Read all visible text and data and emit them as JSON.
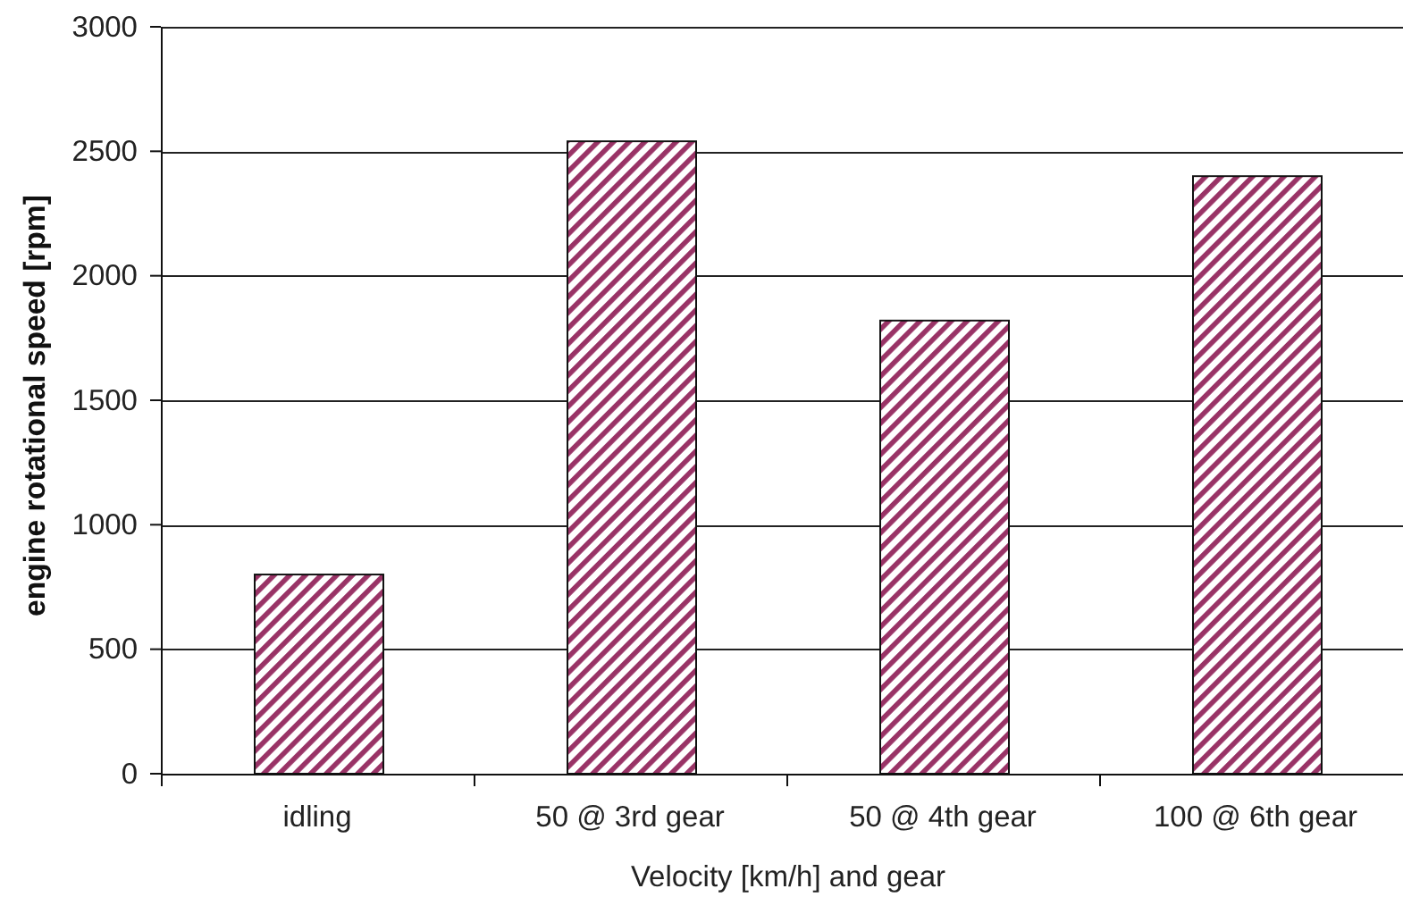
{
  "chart_data": {
    "type": "bar",
    "xlabel": "Velocity [km/h] and gear",
    "ylabel": "engine rotational speed [rpm]",
    "categories": [
      "idling",
      "50 @ 3rd gear",
      "50 @ 4th gear",
      "100 @ 6th gear"
    ],
    "values": [
      800,
      2540,
      1820,
      2400
    ],
    "color": "#993366",
    "ylim": [
      0,
      3000
    ],
    "yticks": [
      0,
      500,
      1000,
      1500,
      2000,
      2500,
      3000
    ],
    "grid": "y"
  }
}
